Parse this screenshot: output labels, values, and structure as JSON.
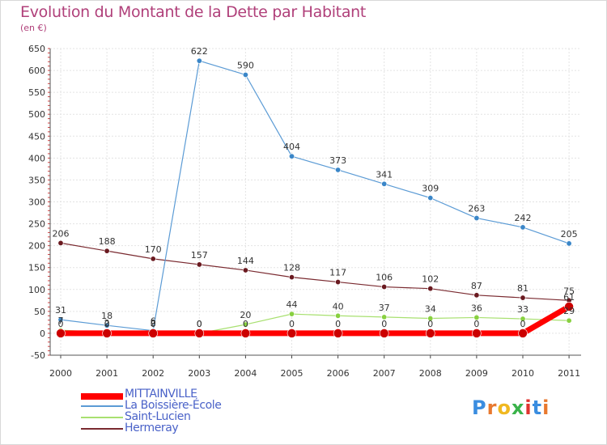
{
  "title": "Evolution du Montant de la Dette par Habitant",
  "unit": "(en €)",
  "logo": {
    "text": "Proxiti",
    "colors": [
      "#3a8de0",
      "#e8792f",
      "#f0b820",
      "#3ab34a",
      "#e0342f",
      "#3a8de0",
      "#e8792f"
    ]
  },
  "legend": [
    {
      "label": "MITTAINVILLE",
      "color": "#ff0000"
    },
    {
      "label": "La Boissière-École",
      "color": "#5b9bd5"
    },
    {
      "label": "Saint-Lucien",
      "color": "#a8e070"
    },
    {
      "label": "Hermeray",
      "color": "#7a2a30"
    }
  ],
  "chart_data": {
    "type": "line",
    "title": "Evolution du Montant de la Dette par Habitant",
    "ylabel": "(en €)",
    "xlabel": "",
    "ylim": [
      -50,
      650
    ],
    "yticks": [
      -50,
      0,
      50,
      100,
      150,
      200,
      250,
      300,
      350,
      400,
      450,
      500,
      550,
      600,
      650
    ],
    "x": [
      "2000",
      "2001",
      "2002",
      "2003",
      "2004",
      "2005",
      "2006",
      "2007",
      "2008",
      "2009",
      "2010",
      "2011"
    ],
    "grid": true,
    "legend_position": "bottom-left",
    "series": [
      {
        "name": "MITTAINVILLE",
        "color": "#ff0000",
        "values": [
          0,
          0,
          0,
          0,
          0,
          0,
          0,
          0,
          0,
          0,
          0,
          61
        ]
      },
      {
        "name": "La Boissière-École",
        "color": "#5b9bd5",
        "values": [
          31,
          18,
          6,
          622,
          590,
          404,
          373,
          341,
          309,
          263,
          242,
          205
        ]
      },
      {
        "name": "Saint-Lucien",
        "color": "#a8e070",
        "values": [
          7,
          2,
          2,
          0,
          20,
          44,
          40,
          37,
          34,
          36,
          33,
          29
        ]
      },
      {
        "name": "Hermeray",
        "color": "#7a2a30",
        "values": [
          206,
          188,
          170,
          157,
          144,
          128,
          117,
          106,
          102,
          87,
          81,
          75
        ]
      }
    ]
  }
}
